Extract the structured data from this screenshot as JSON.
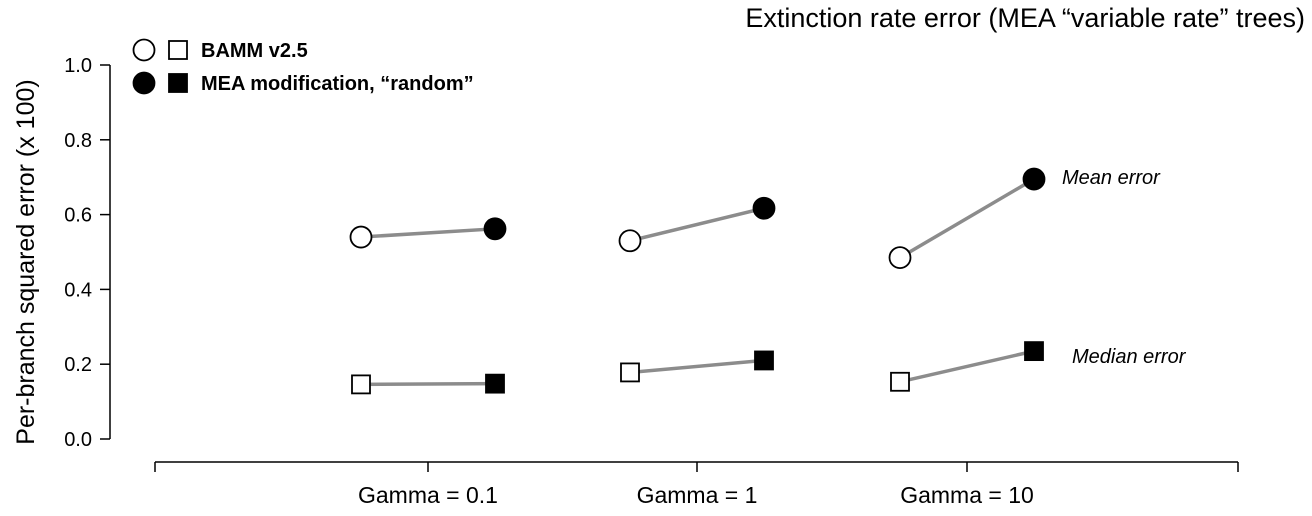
{
  "chart_data": {
    "type": "scatter",
    "title": "Extinction rate error (MEA “variable rate” trees)",
    "ylabel": "Per-branch squared error (x 100)",
    "xlabel": "",
    "ylim": [
      0,
      1.0
    ],
    "yticks": [
      "0.0",
      "0.2",
      "0.4",
      "0.6",
      "0.8",
      "1.0"
    ],
    "categories": [
      "Gamma = 0.1",
      "Gamma = 1",
      "Gamma = 10"
    ],
    "grid": false,
    "legend_position": "top-left",
    "legend": [
      {
        "label": "BAMM v2.5",
        "fill": "open"
      },
      {
        "label": "MEA modification, “random”",
        "fill": "filled"
      }
    ],
    "series": [
      {
        "name": "BAMM v2.5",
        "statistic": "mean",
        "marker": "circle",
        "filled": false,
        "values": [
          0.54,
          0.53,
          0.485
        ]
      },
      {
        "name": "MEA modification, “random”",
        "statistic": "mean",
        "marker": "circle",
        "filled": true,
        "values": [
          0.562,
          0.617,
          0.695
        ]
      },
      {
        "name": "BAMM v2.5",
        "statistic": "median",
        "marker": "square",
        "filled": false,
        "values": [
          0.146,
          0.178,
          0.153
        ]
      },
      {
        "name": "MEA modification, “random”",
        "statistic": "median",
        "marker": "square",
        "filled": true,
        "values": [
          0.148,
          0.21,
          0.235
        ]
      }
    ],
    "annotations": [
      {
        "text": "Mean error",
        "series_stat": "mean"
      },
      {
        "text": "Median error",
        "series_stat": "median"
      }
    ],
    "colors": {
      "connector": "#8c8c8c",
      "marker_edge": "#000000",
      "marker_fill": "#000000",
      "open_fill": "#ffffff"
    }
  }
}
